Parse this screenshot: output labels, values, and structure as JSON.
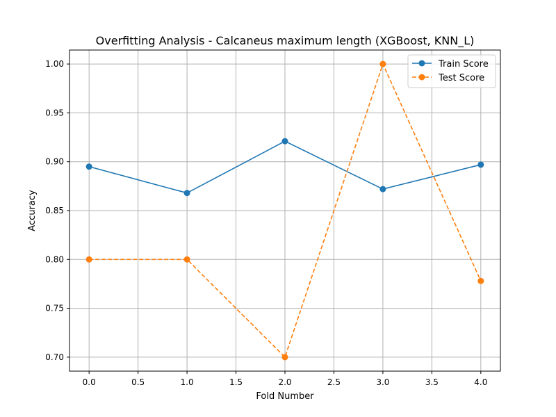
{
  "chart_data": {
    "type": "line",
    "title": "Overfitting Analysis - Calcaneus maximum length (XGBoost, KNN_L)",
    "xlabel": "Fold Number",
    "ylabel": "Accuracy",
    "xlim": [
      -0.2,
      4.2
    ],
    "ylim": [
      0.6857,
      1.0143
    ],
    "xticks": [
      0.0,
      0.5,
      1.0,
      1.5,
      2.0,
      2.5,
      3.0,
      3.5,
      4.0
    ],
    "xtick_labels": [
      "0.0",
      "0.5",
      "1.0",
      "1.5",
      "2.0",
      "2.5",
      "3.0",
      "3.5",
      "4.0"
    ],
    "yticks": [
      0.7,
      0.75,
      0.8,
      0.85,
      0.9,
      0.95,
      1.0
    ],
    "ytick_labels": [
      "0.70",
      "0.75",
      "0.80",
      "0.85",
      "0.90",
      "0.95",
      "1.00"
    ],
    "grid": true,
    "legend_position": "top-right",
    "x": [
      0,
      1,
      2,
      3,
      4
    ],
    "series": [
      {
        "name": "Train Score",
        "values": [
          0.895,
          0.868,
          0.921,
          0.872,
          0.897
        ],
        "color": "#1f77b4",
        "linestyle": "solid",
        "marker": "circle"
      },
      {
        "name": "Test Score",
        "values": [
          0.8,
          0.8,
          0.7,
          1.0,
          0.778
        ],
        "color": "#ff7f0e",
        "linestyle": "dashed",
        "marker": "circle"
      }
    ]
  }
}
